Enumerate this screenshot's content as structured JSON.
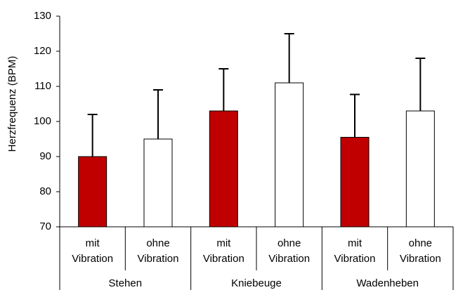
{
  "chart_data": {
    "type": "bar",
    "y_label": "Herzfrequenz (BPM)",
    "categories": [
      [
        "mit",
        "Vibration"
      ],
      [
        "ohne",
        "Vibration"
      ],
      [
        "mit",
        "Vibration"
      ],
      [
        "ohne",
        "Vibration"
      ],
      [
        "mit",
        "Vibration"
      ],
      [
        "ohne",
        "Vibration"
      ]
    ],
    "groups": [
      "Stehen",
      "Kniebeuge",
      "Wadenheben"
    ],
    "values": [
      90,
      95,
      103,
      111,
      95.5,
      103
    ],
    "errors": [
      12,
      14,
      12,
      14,
      12.2,
      15
    ],
    "colors": [
      "#c00000",
      "#ffffff",
      "#c00000",
      "#ffffff",
      "#c00000",
      "#ffffff"
    ],
    "ylim": [
      70,
      130
    ],
    "yticks": [
      70,
      80,
      90,
      100,
      110,
      120,
      130
    ],
    "grid": false
  }
}
